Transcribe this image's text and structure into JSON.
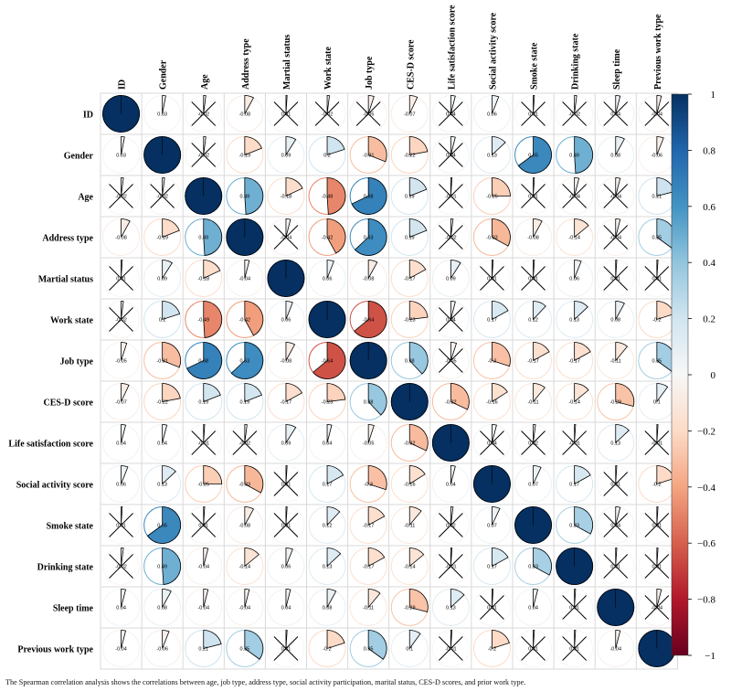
{
  "chart_data": {
    "type": "heatmap",
    "style": "pie-correlation-matrix",
    "method": "Spearman",
    "variables": [
      "ID",
      "Gender",
      "Age",
      "Address type",
      "Martial status",
      "Work state",
      "Job type",
      "CES-D score",
      "Life satisfaction score",
      "Social activity score",
      "Smoke state",
      "Drinking state",
      "Sleep time",
      "Previous work type"
    ],
    "matrix": [
      [
        1,
        0.03,
        -0.02,
        -0.08,
        0.01,
        -0.02,
        -0.05,
        -0.07,
        0.04,
        0.06,
        0.01,
        -0.02,
        0.04,
        -0.04
      ],
      [
        0.03,
        1,
        -0.02,
        -0.19,
        0.09,
        0.2,
        -0.31,
        -0.22,
        0.04,
        0.13,
        0.65,
        0.49,
        0.08,
        -0.06
      ],
      [
        -0.02,
        -0.02,
        1,
        0.49,
        -0.18,
        -0.49,
        0.68,
        0.19,
        -0.01,
        -0.25,
        0.01,
        -0.04,
        -0.04,
        0.21
      ],
      [
        -0.08,
        -0.19,
        0.49,
        1,
        -0.04,
        -0.42,
        0.63,
        0.19,
        -0.02,
        -0.33,
        -0.08,
        -0.14,
        -0.04,
        0.35
      ],
      [
        0.01,
        0.09,
        -0.18,
        -0.04,
        1,
        0.06,
        -0.08,
        -0.17,
        0.09,
        0.01,
        0.01,
        0.06,
        0.01,
        0.01
      ],
      [
        -0.02,
        0.2,
        -0.49,
        -0.42,
        0.06,
        1,
        -0.64,
        -0.23,
        0.04,
        0.17,
        0.12,
        0.13,
        0.08,
        -0.2
      ],
      [
        -0.05,
        -0.31,
        0.68,
        0.63,
        -0.08,
        -0.64,
        1,
        0.38,
        -0.05,
        -0.3,
        -0.17,
        -0.17,
        -0.11,
        0.35
      ],
      [
        -0.07,
        -0.22,
        0.19,
        0.19,
        -0.17,
        -0.23,
        0.38,
        1,
        -0.32,
        -0.16,
        -0.11,
        -0.14,
        -0.29,
        0.1
      ],
      [
        0.04,
        0.04,
        -0.01,
        -0.02,
        0.09,
        0.04,
        -0.05,
        -0.32,
        1,
        0.04,
        0.02,
        -0.01,
        0.13,
        -0.01
      ],
      [
        0.06,
        0.13,
        -0.25,
        -0.33,
        0.01,
        0.17,
        -0.3,
        -0.16,
        0.04,
        1,
        0.07,
        0.17,
        0.01,
        -0.2
      ],
      [
        0.01,
        0.65,
        0.01,
        -0.08,
        0.01,
        0.12,
        -0.17,
        -0.11,
        0.02,
        0.07,
        1,
        0.33,
        0.04,
        0.01
      ],
      [
        -0.02,
        0.49,
        -0.04,
        -0.14,
        0.06,
        0.13,
        -0.17,
        -0.14,
        -0.01,
        0.17,
        0.33,
        1,
        0.01,
        0.01
      ],
      [
        0.04,
        0.08,
        -0.04,
        -0.04,
        0.04,
        0.08,
        -0.11,
        -0.29,
        0.13,
        0.01,
        0.04,
        0.01,
        1,
        -0.04
      ],
      [
        -0.04,
        -0.06,
        0.21,
        0.35,
        0.01,
        -0.2,
        0.35,
        0.1,
        -0.01,
        -0.2,
        0.01,
        0.01,
        -0.04,
        1
      ]
    ],
    "crossed": [
      [
        0,
        2
      ],
      [
        0,
        4
      ],
      [
        0,
        5
      ],
      [
        0,
        6
      ],
      [
        0,
        8
      ],
      [
        0,
        10
      ],
      [
        0,
        11
      ],
      [
        0,
        12
      ],
      [
        0,
        13
      ],
      [
        1,
        2
      ],
      [
        1,
        8
      ],
      [
        2,
        0
      ],
      [
        2,
        1
      ],
      [
        2,
        8
      ],
      [
        2,
        10
      ],
      [
        2,
        11
      ],
      [
        2,
        12
      ],
      [
        3,
        4
      ],
      [
        3,
        8
      ],
      [
        3,
        12
      ],
      [
        4,
        0
      ],
      [
        4,
        9
      ],
      [
        4,
        10
      ],
      [
        4,
        12
      ],
      [
        4,
        13
      ],
      [
        5,
        0
      ],
      [
        5,
        8
      ],
      [
        6,
        8
      ],
      [
        8,
        2
      ],
      [
        8,
        3
      ],
      [
        8,
        9
      ],
      [
        8,
        10
      ],
      [
        8,
        11
      ],
      [
        8,
        13
      ],
      [
        9,
        4
      ],
      [
        9,
        12
      ],
      [
        10,
        0
      ],
      [
        10,
        2
      ],
      [
        10,
        4
      ],
      [
        10,
        8
      ],
      [
        10,
        12
      ],
      [
        10,
        13
      ],
      [
        11,
        0
      ],
      [
        11,
        8
      ],
      [
        11,
        12
      ],
      [
        11,
        13
      ],
      [
        12,
        9
      ],
      [
        12,
        11
      ],
      [
        12,
        13
      ],
      [
        13,
        4
      ],
      [
        13,
        8
      ],
      [
        13,
        10
      ],
      [
        13,
        11
      ]
    ],
    "show_values": "lower",
    "colorbar": {
      "ticks": [
        "1",
        "0.8",
        "0.6",
        "0.4",
        "0.2",
        "0",
        "−0.2",
        "−0.4",
        "−0.6",
        "−0.8",
        "−1"
      ],
      "range": [
        -1,
        1
      ],
      "colors": {
        "neg": "#67001f",
        "mid": "#ffffff",
        "pos": "#053061"
      }
    },
    "caption": "The Spearman correlation analysis shows the correlations between age, job type, address type, social activity participation, marital status, CES-D scores, and prior work type."
  }
}
